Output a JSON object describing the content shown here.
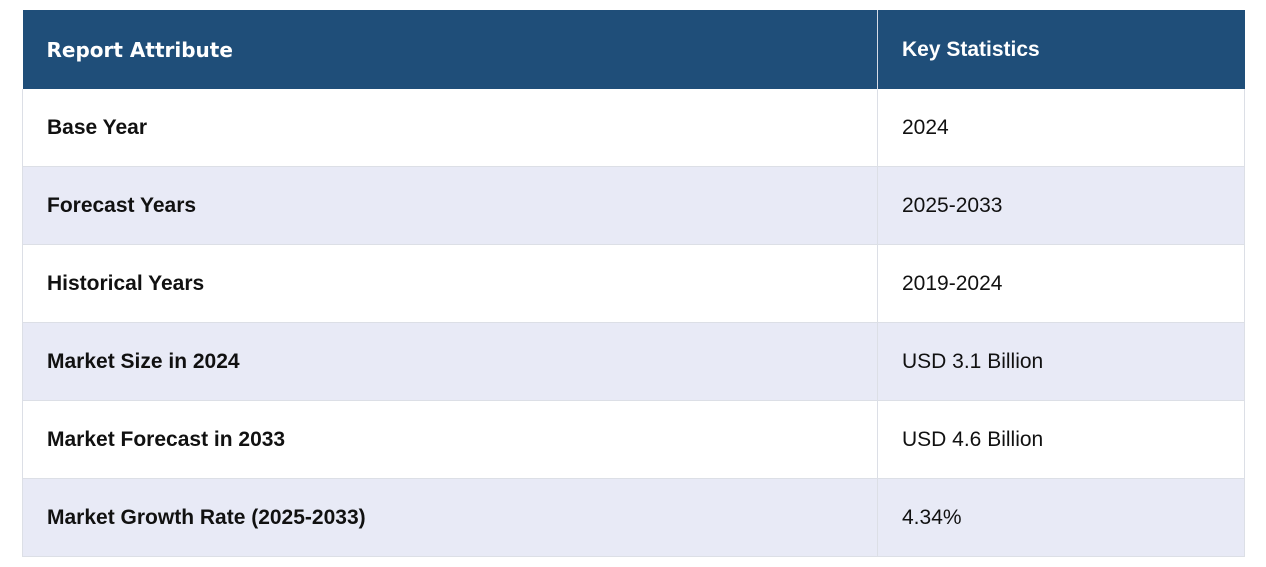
{
  "table": {
    "headers": [
      "Report Attribute",
      "Key Statistics"
    ],
    "rows": [
      [
        "Base Year",
        "2024"
      ],
      [
        "Forecast Years",
        "2025-2033"
      ],
      [
        "Historical Years",
        "2019-2024"
      ],
      [
        "Market Size in 2024",
        "USD 3.1 Billion"
      ],
      [
        "Market Forecast in 2033",
        "USD 4.6 Billion"
      ],
      [
        "Market Growth Rate (2025-2033)",
        "4.34%"
      ]
    ],
    "colors": {
      "header_bg": "#1f4e79",
      "header_text": "#ffffff",
      "stripe_bg": "#e8eaf6"
    }
  }
}
